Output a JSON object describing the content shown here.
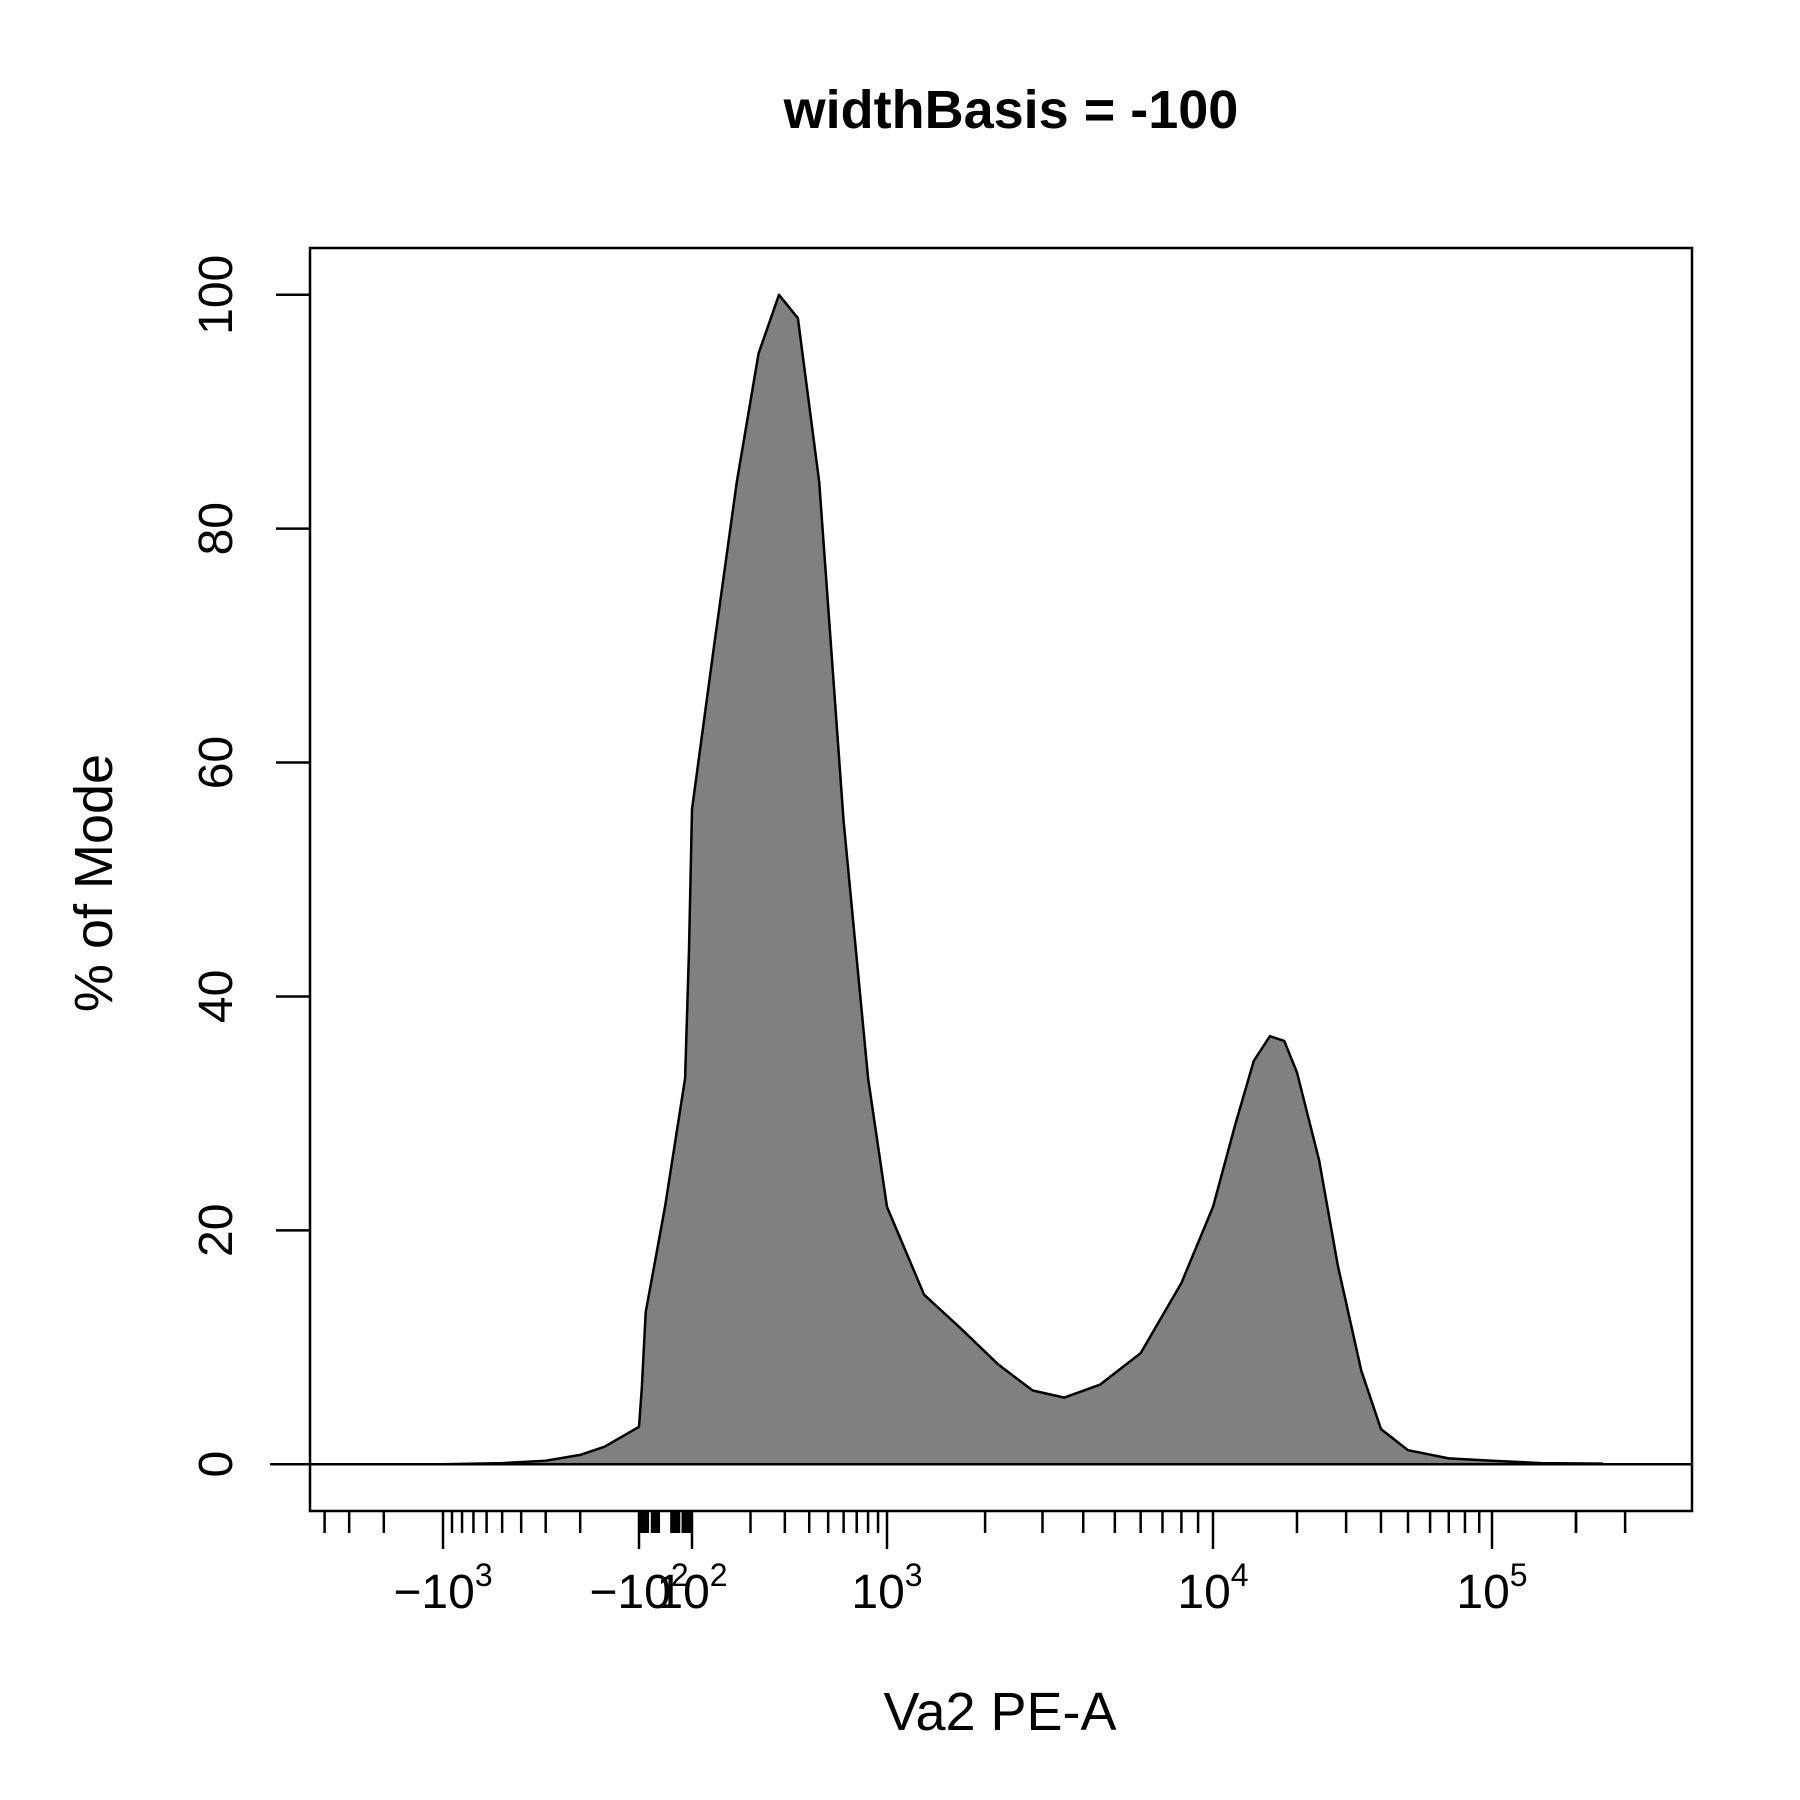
{
  "chart_data": {
    "type": "area",
    "title": "widthBasis = -100",
    "xlabel": "Va2 PE-A",
    "ylabel": "% of Mode",
    "x_scale": "logicle (widthBasis -100)",
    "ylim": [
      -4,
      104
    ],
    "y_ticks": [
      0,
      20,
      40,
      60,
      80,
      100
    ],
    "y_tick_labels": [
      "0",
      "20",
      "40",
      "60",
      "80",
      "100"
    ],
    "x_major_ticks": [
      {
        "value": -1000,
        "label": "−10",
        "sup": "3"
      },
      {
        "value": -100,
        "label": "−10",
        "sup": "2"
      },
      {
        "value": 100,
        "label": "10",
        "sup": "2"
      },
      {
        "value": 1000,
        "label": "10",
        "sup": "3"
      },
      {
        "value": 10000,
        "label": "10",
        "sup": "4"
      },
      {
        "value": 100000,
        "label": "10",
        "sup": "5"
      }
    ],
    "fill_color": "#808080",
    "line_color": "#000000",
    "grid": false,
    "legend": "none",
    "series": [
      {
        "x": [
          -6000,
          -3000,
          -1000,
          -500,
          -300,
          -200,
          -150,
          -100,
          -60,
          -30,
          0,
          30,
          60,
          100,
          130,
          170,
          220,
          280,
          350,
          450,
          600,
          800,
          1000,
          1300,
          1700,
          2200,
          2800,
          3500,
          4500,
          6000,
          8000,
          10000,
          12000,
          14000,
          16000,
          18000,
          20000,
          24000,
          28000,
          34000,
          40000,
          50000,
          70000,
          100000,
          150000,
          250000
        ],
        "y": [
          0,
          0,
          0,
          0.1,
          0.3,
          0.8,
          1.5,
          3.2,
          6.5,
          13,
          22,
          33,
          44,
          56,
          70,
          84,
          95,
          100,
          98,
          84,
          55,
          33,
          22,
          14.5,
          11.5,
          8.5,
          6.3,
          5.7,
          6.8,
          9.5,
          15.5,
          22,
          29,
          34.5,
          36.6,
          36.2,
          33.5,
          26,
          17,
          8,
          3,
          1.2,
          0.5,
          0.3,
          0.1,
          0.05
        ]
      }
    ]
  }
}
